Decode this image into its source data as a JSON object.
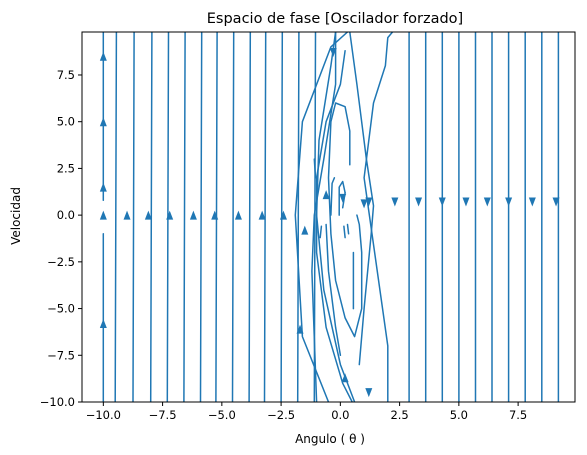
{
  "chart_data": {
    "type": "streamplot",
    "title": "Espacio de fase [Oscilador forzado]",
    "xlabel": "Angulo ( θ )",
    "ylabel": "Velocidad",
    "xlim": [
      -10.9,
      9.9
    ],
    "ylim": [
      -10.0,
      9.8
    ],
    "xticks": [
      -10.0,
      -7.5,
      -5.0,
      -2.5,
      0.0,
      2.5,
      5.0,
      7.5
    ],
    "xtick_labels": [
      "−10.0",
      "−7.5",
      "−5.0",
      "−2.5",
      "0.0",
      "2.5",
      "5.0",
      "7.5"
    ],
    "yticks": [
      -10.0,
      -7.5,
      -5.0,
      -2.5,
      0.0,
      2.5,
      5.0,
      7.5
    ],
    "ytick_labels": [
      "−10.0",
      "−7.5",
      "−5.0",
      "−2.5",
      "0.0",
      "2.5",
      "5.0",
      "7.5"
    ],
    "grid": false,
    "line_color": "#1f77b4",
    "arrows_up_x": [
      -10.0,
      -9.0,
      -8.1,
      -7.2,
      -6.2,
      -5.3,
      -4.3,
      -3.3,
      -2.4
    ],
    "arrows_down_x": [
      1.2,
      2.3,
      3.3,
      4.3,
      5.3,
      6.2,
      7.1,
      8.1,
      9.1
    ],
    "streamlines": [
      {
        "x": [
          -10.0,
          -10.0
        ],
        "y": [
          -10.0,
          -1.0
        ]
      },
      {
        "x": [
          -10.0,
          -10.0
        ],
        "y": [
          0.8,
          9.8
        ]
      },
      {
        "x": [
          -9.5,
          -9.45
        ],
        "y": [
          -10.0,
          9.8
        ]
      },
      {
        "x": [
          -8.75,
          -8.7
        ],
        "y": [
          -10.0,
          9.8
        ]
      },
      {
        "x": [
          -8.0,
          -7.95
        ],
        "y": [
          -10.0,
          9.8
        ]
      },
      {
        "x": [
          -7.3,
          -7.25
        ],
        "y": [
          -10.0,
          9.8
        ]
      },
      {
        "x": [
          -6.6,
          -6.55
        ],
        "y": [
          -10.0,
          9.8
        ]
      },
      {
        "x": [
          -5.9,
          -5.85
        ],
        "y": [
          -10.0,
          9.8
        ]
      },
      {
        "x": [
          -5.25,
          -5.2
        ],
        "y": [
          -10.0,
          9.8
        ]
      },
      {
        "x": [
          -4.55,
          -4.5
        ],
        "y": [
          -10.0,
          9.8
        ]
      },
      {
        "x": [
          -3.85,
          -3.8
        ],
        "y": [
          -10.0,
          9.8
        ]
      },
      {
        "x": [
          -3.2,
          -3.15
        ],
        "y": [
          -10.0,
          9.8
        ]
      },
      {
        "x": [
          -2.5,
          -2.45
        ],
        "y": [
          -10.0,
          9.8
        ]
      },
      {
        "x": [
          -1.8,
          -1.75
        ],
        "y": [
          -10.0,
          9.8
        ]
      },
      {
        "x": [
          -1.1,
          -1.05
        ],
        "y": [
          -10.0,
          9.8
        ]
      },
      {
        "x": [
          2.9,
          2.9
        ],
        "y": [
          9.8,
          -10.0
        ]
      },
      {
        "x": [
          3.6,
          3.6
        ],
        "y": [
          9.8,
          -10.0
        ]
      },
      {
        "x": [
          4.3,
          4.3
        ],
        "y": [
          9.8,
          -10.0
        ]
      },
      {
        "x": [
          5.0,
          5.0
        ],
        "y": [
          9.8,
          -10.0
        ]
      },
      {
        "x": [
          5.7,
          5.7
        ],
        "y": [
          9.8,
          -10.0
        ]
      },
      {
        "x": [
          6.4,
          6.4
        ],
        "y": [
          9.8,
          -10.0
        ]
      },
      {
        "x": [
          7.1,
          7.1
        ],
        "y": [
          9.8,
          -10.0
        ]
      },
      {
        "x": [
          7.8,
          7.8
        ],
        "y": [
          9.8,
          -10.0
        ]
      },
      {
        "x": [
          8.5,
          8.5
        ],
        "y": [
          9.8,
          -10.0
        ]
      },
      {
        "x": [
          9.2,
          9.2
        ],
        "y": [
          9.8,
          -10.0
        ]
      },
      {
        "x": [
          -0.5,
          -1.6,
          -1.9,
          -1.6,
          -0.4,
          0.3
        ],
        "y": [
          -10.0,
          -6.5,
          0.0,
          5.0,
          9.0,
          9.8
        ]
      },
      {
        "x": [
          -0.2,
          -0.2,
          -0.7,
          -1.1,
          -1.2,
          -1.0
        ],
        "y": [
          9.8,
          7.0,
          3.0,
          0.0,
          -3.0,
          -10.0
        ]
      },
      {
        "x": [
          0.2,
          0.0,
          -0.6,
          -1.0,
          -1.0,
          -0.6,
          0.1,
          0.5
        ],
        "y": [
          8.8,
          7.0,
          5.0,
          2.0,
          -2.0,
          -6.0,
          -9.0,
          -10.0
        ]
      },
      {
        "x": [
          -0.2,
          -0.4,
          -0.9,
          -1.0,
          -0.7,
          0.0,
          0.6
        ],
        "y": [
          9.8,
          8.0,
          4.0,
          0.0,
          -4.0,
          -8.0,
          -10.0
        ]
      },
      {
        "x": [
          2.0,
          2.0,
          1.0,
          1.4,
          1.9,
          2.0,
          2.2
        ],
        "y": [
          -10.0,
          -7.0,
          2.0,
          6.0,
          8.0,
          9.5,
          9.8
        ]
      },
      {
        "x": [
          0.8,
          1.0,
          1.3,
          1.4,
          1.1,
          0.7,
          0.4
        ],
        "y": [
          -8.0,
          -5.0,
          -1.0,
          0.5,
          3.0,
          7.0,
          9.8
        ]
      },
      {
        "x": [
          0.4,
          0.4,
          0.2,
          -0.2,
          -0.4,
          -0.5,
          -0.4,
          -0.2,
          0.2,
          0.6,
          0.9,
          0.9,
          0.8,
          0.7
        ],
        "y": [
          2.7,
          4.5,
          5.8,
          6.0,
          5.0,
          2.0,
          -1.0,
          -3.5,
          -5.5,
          -6.5,
          -5.0,
          -2.0,
          -0.5,
          0.0
        ]
      },
      {
        "x": [
          -0.6,
          -0.5,
          -0.2,
          0.0
        ],
        "y": [
          -0.5,
          -3.0,
          -6.0,
          -7.5
        ]
      },
      {
        "x": [
          -0.4,
          -0.35,
          -0.25
        ],
        "y": [
          0.0,
          1.7,
          2.0
        ]
      },
      {
        "x": [
          -0.05,
          -0.05,
          0.1,
          0.2
        ],
        "y": [
          0.0,
          1.5,
          1.8,
          1.2
        ]
      },
      {
        "x": [
          0.1,
          0.15,
          0.2
        ],
        "y": [
          0.4,
          0.8,
          1.2
        ]
      },
      {
        "x": [
          0.3,
          0.35
        ],
        "y": [
          -0.5,
          -1.0
        ]
      },
      {
        "x": [
          -0.8,
          -0.85
        ],
        "y": [
          -0.6,
          -1.2
        ]
      },
      {
        "x": [
          0.15,
          0.2
        ],
        "y": [
          -0.6,
          -1.2
        ]
      },
      {
        "x": [
          -1.05,
          -1.1
        ],
        "y": [
          2.0,
          3.0
        ]
      },
      {
        "x": [
          0.55,
          0.55
        ],
        "y": [
          -2.0,
          -5.0
        ]
      }
    ]
  }
}
